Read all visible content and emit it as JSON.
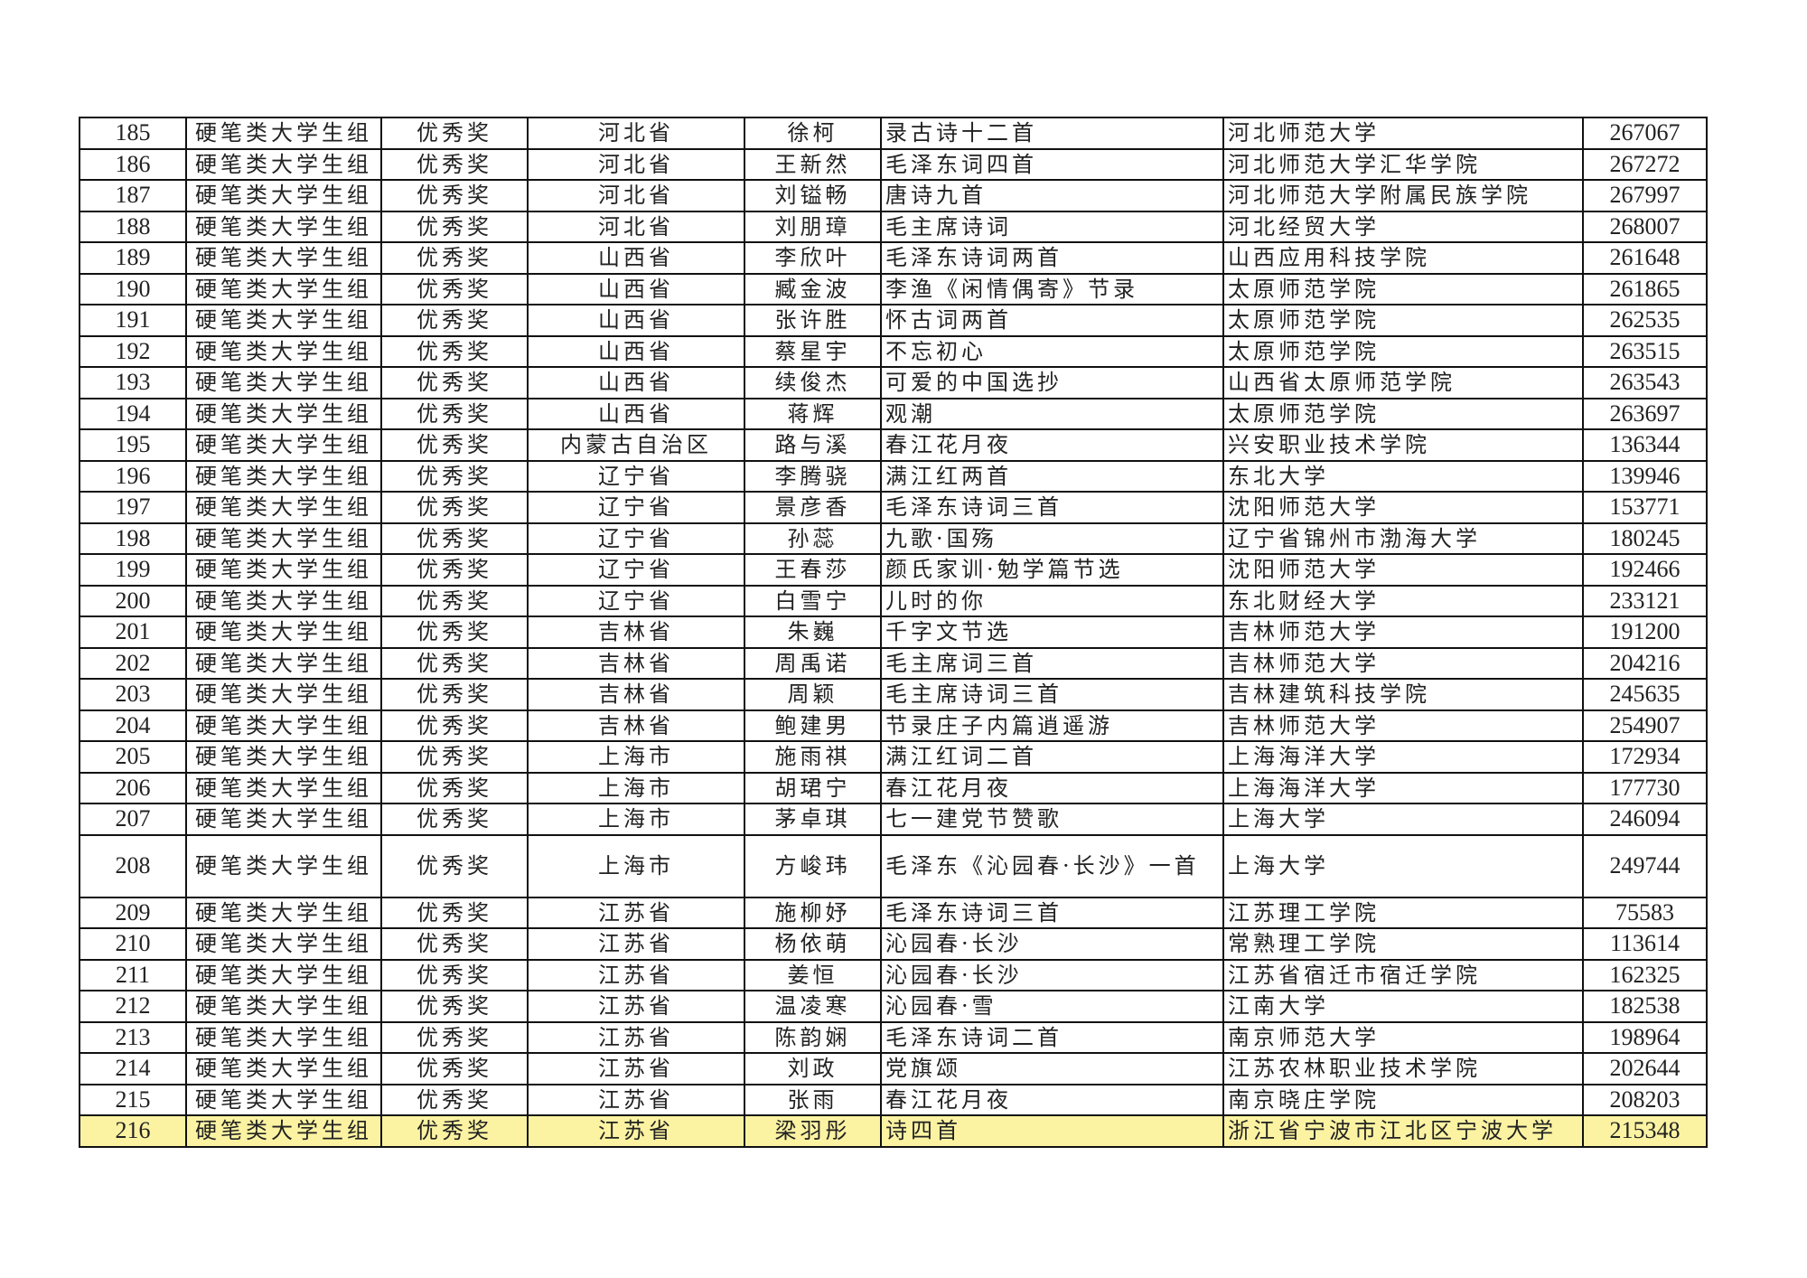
{
  "table": {
    "highlight_color": "#fbf3a2",
    "rows": [
      [
        "185",
        "硬笔类大学生组",
        "优秀奖",
        "河北省",
        "徐柯",
        "录古诗十二首",
        "河北师范大学",
        "267067"
      ],
      [
        "186",
        "硬笔类大学生组",
        "优秀奖",
        "河北省",
        "王新然",
        "毛泽东词四首",
        "河北师范大学汇华学院",
        "267272"
      ],
      [
        "187",
        "硬笔类大学生组",
        "优秀奖",
        "河北省",
        "刘镒畅",
        "唐诗九首",
        "河北师范大学附属民族学院",
        "267997"
      ],
      [
        "188",
        "硬笔类大学生组",
        "优秀奖",
        "河北省",
        "刘朋璋",
        "毛主席诗词",
        "河北经贸大学",
        "268007"
      ],
      [
        "189",
        "硬笔类大学生组",
        "优秀奖",
        "山西省",
        "李欣叶",
        "毛泽东诗词两首",
        "山西应用科技学院",
        "261648"
      ],
      [
        "190",
        "硬笔类大学生组",
        "优秀奖",
        "山西省",
        "臧金波",
        "李渔《闲情偶寄》节录",
        "太原师范学院",
        "261865"
      ],
      [
        "191",
        "硬笔类大学生组",
        "优秀奖",
        "山西省",
        "张许胜",
        "怀古词两首",
        "太原师范学院",
        "262535"
      ],
      [
        "192",
        "硬笔类大学生组",
        "优秀奖",
        "山西省",
        "蔡星宇",
        "不忘初心",
        "太原师范学院",
        "263515"
      ],
      [
        "193",
        "硬笔类大学生组",
        "优秀奖",
        "山西省",
        "续俊杰",
        "可爱的中国选抄",
        "山西省太原师范学院",
        "263543"
      ],
      [
        "194",
        "硬笔类大学生组",
        "优秀奖",
        "山西省",
        "蒋辉",
        "观潮",
        "太原师范学院",
        "263697"
      ],
      [
        "195",
        "硬笔类大学生组",
        "优秀奖",
        "内蒙古自治区",
        "路与溪",
        "春江花月夜",
        "兴安职业技术学院",
        "136344"
      ],
      [
        "196",
        "硬笔类大学生组",
        "优秀奖",
        "辽宁省",
        "李腾骁",
        "满江红两首",
        "东北大学",
        "139946"
      ],
      [
        "197",
        "硬笔类大学生组",
        "优秀奖",
        "辽宁省",
        "景彦香",
        "毛泽东诗词三首",
        "沈阳师范大学",
        "153771"
      ],
      [
        "198",
        "硬笔类大学生组",
        "优秀奖",
        "辽宁省",
        "孙蕊",
        "九歌·国殇",
        "辽宁省锦州市渤海大学",
        "180245"
      ],
      [
        "199",
        "硬笔类大学生组",
        "优秀奖",
        "辽宁省",
        "王春莎",
        "颜氏家训·勉学篇节选",
        "沈阳师范大学",
        "192466"
      ],
      [
        "200",
        "硬笔类大学生组",
        "优秀奖",
        "辽宁省",
        "白雪宁",
        "儿时的你",
        "东北财经大学",
        "233121"
      ],
      [
        "201",
        "硬笔类大学生组",
        "优秀奖",
        "吉林省",
        "朱巍",
        "千字文节选",
        "吉林师范大学",
        "191200"
      ],
      [
        "202",
        "硬笔类大学生组",
        "优秀奖",
        "吉林省",
        "周禹诺",
        "毛主席词三首",
        "吉林师范大学",
        "204216"
      ],
      [
        "203",
        "硬笔类大学生组",
        "优秀奖",
        "吉林省",
        "周颖",
        "毛主席诗词三首",
        "吉林建筑科技学院",
        "245635"
      ],
      [
        "204",
        "硬笔类大学生组",
        "优秀奖",
        "吉林省",
        "鲍建男",
        "节录庄子内篇逍遥游",
        "吉林师范大学",
        "254907"
      ],
      [
        "205",
        "硬笔类大学生组",
        "优秀奖",
        "上海市",
        "施雨祺",
        "满江红词二首",
        "上海海洋大学",
        "172934"
      ],
      [
        "206",
        "硬笔类大学生组",
        "优秀奖",
        "上海市",
        "胡珺宁",
        "春江花月夜",
        "上海海洋大学",
        "177730"
      ],
      [
        "207",
        "硬笔类大学生组",
        "优秀奖",
        "上海市",
        "茅卓琪",
        "七一建党节赞歌",
        "上海大学",
        "246094"
      ],
      [
        "208",
        "硬笔类大学生组",
        "优秀奖",
        "上海市",
        "方峻玮",
        "毛泽东《沁园春·长沙》一首",
        "上海大学",
        "249744"
      ],
      [
        "209",
        "硬笔类大学生组",
        "优秀奖",
        "江苏省",
        "施柳妤",
        "毛泽东诗词三首",
        "江苏理工学院",
        "75583"
      ],
      [
        "210",
        "硬笔类大学生组",
        "优秀奖",
        "江苏省",
        "杨依萌",
        "沁园春·长沙",
        "常熟理工学院",
        "113614"
      ],
      [
        "211",
        "硬笔类大学生组",
        "优秀奖",
        "江苏省",
        "姜恒",
        "沁园春·长沙",
        "江苏省宿迁市宿迁学院",
        "162325"
      ],
      [
        "212",
        "硬笔类大学生组",
        "优秀奖",
        "江苏省",
        "温凌寒",
        "沁园春·雪",
        "江南大学",
        "182538"
      ],
      [
        "213",
        "硬笔类大学生组",
        "优秀奖",
        "江苏省",
        "陈韵娴",
        "毛泽东诗词二首",
        "南京师范大学",
        "198964"
      ],
      [
        "214",
        "硬笔类大学生组",
        "优秀奖",
        "江苏省",
        "刘政",
        "党旗颂",
        "江苏农林职业技术学院",
        "202644"
      ],
      [
        "215",
        "硬笔类大学生组",
        "优秀奖",
        "江苏省",
        "张雨",
        "春江花月夜",
        "南京晓庄学院",
        "208203"
      ],
      [
        "216",
        "硬笔类大学生组",
        "优秀奖",
        "江苏省",
        "梁羽彤",
        "诗四首",
        "浙江省宁波市江北区宁波大学",
        "215348"
      ]
    ]
  }
}
